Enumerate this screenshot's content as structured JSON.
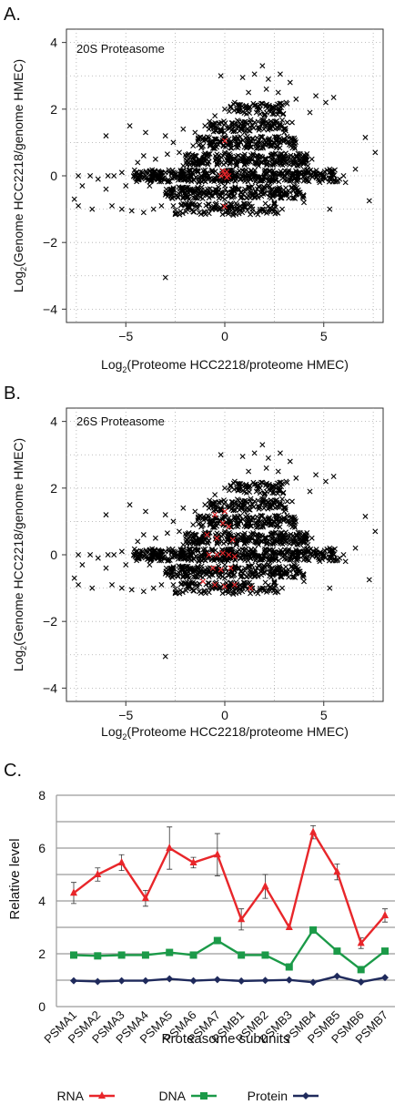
{
  "figure": {
    "panel_a_label": "A.",
    "panel_b_label": "B.",
    "panel_c_label": "C."
  },
  "chart_data": [
    {
      "type": "scatter",
      "panel": "A.",
      "title": "20S Proteasome",
      "xlabel_prefix": "Log",
      "xlabel_sub": "2",
      "xlabel_rest": "(Proteome HCC2218/proteome HMEC)",
      "ylabel_prefix": "Log",
      "ylabel_sub": "2",
      "ylabel_rest": "(Genome HCC2218/genome HMEC)",
      "xlim": [
        -8,
        8
      ],
      "ylim": [
        -4.4,
        4.4
      ],
      "xticks": [
        -5,
        0,
        5
      ],
      "yticks": [
        -4,
        -2,
        0,
        2,
        4
      ],
      "grid": true,
      "colors": {
        "background": "#000000",
        "highlight": "#e8262a"
      },
      "series": [
        {
          "role": "background",
          "marker": "x",
          "points": [
            [
              -0.2,
              3.0
            ],
            [
              0.9,
              2.95
            ],
            [
              1.5,
              3.05
            ],
            [
              1.9,
              3.3
            ],
            [
              2.2,
              2.9
            ],
            [
              2.8,
              3.05
            ],
            [
              3.3,
              2.8
            ],
            [
              3.6,
              2.3
            ],
            [
              4.6,
              2.4
            ],
            [
              5.1,
              2.2
            ],
            [
              5.5,
              2.35
            ],
            [
              4.3,
              1.9
            ],
            [
              1.2,
              2.5
            ],
            [
              0.5,
              2.2
            ],
            [
              0.0,
              2.0
            ],
            [
              -0.5,
              1.8
            ],
            [
              -1.0,
              1.5
            ],
            [
              -1.5,
              1.3
            ],
            [
              -2.1,
              1.4
            ],
            [
              -1.6,
              0.9
            ],
            [
              -1.1,
              1.1
            ],
            [
              -3.0,
              1.2
            ],
            [
              -4.0,
              1.3
            ],
            [
              -4.8,
              1.5
            ],
            [
              -6.0,
              1.2
            ],
            [
              -2.3,
              0.7
            ],
            [
              -2.9,
              0.65
            ],
            [
              -3.5,
              0.5
            ],
            [
              -4.1,
              0.6
            ],
            [
              -4.4,
              0.4
            ],
            [
              -5.2,
              0.1
            ],
            [
              -5.6,
              0.0
            ],
            [
              -5.9,
              0.0
            ],
            [
              -6.4,
              -0.1
            ],
            [
              -6.8,
              0.0
            ],
            [
              -7.4,
              0.0
            ],
            [
              -7.2,
              -0.3
            ],
            [
              -7.6,
              -0.7
            ],
            [
              -7.4,
              -0.9
            ],
            [
              -6.7,
              -1.0
            ],
            [
              -5.7,
              -0.9
            ],
            [
              -5.2,
              -1.0
            ],
            [
              -4.7,
              -1.05
            ],
            [
              -4.1,
              -1.1
            ],
            [
              -3.6,
              -1.0
            ],
            [
              -3.2,
              -0.9
            ],
            [
              -2.6,
              -0.9
            ],
            [
              -1.9,
              -0.95
            ],
            [
              -1.4,
              -0.9
            ],
            [
              -3.0,
              -3.05
            ],
            [
              -0.8,
              0.0
            ],
            [
              -1.2,
              0.0
            ],
            [
              -1.8,
              0.0
            ],
            [
              -2.4,
              0.0
            ],
            [
              -3.3,
              0.0
            ],
            [
              -4.0,
              0.0
            ],
            [
              -4.5,
              0.0
            ],
            [
              -2.7,
              -0.4
            ],
            [
              -2.0,
              -0.5
            ],
            [
              -1.5,
              -0.5
            ],
            [
              -1.0,
              -0.45
            ],
            [
              -0.5,
              -0.5
            ],
            [
              0.3,
              -0.5
            ],
            [
              0.8,
              -0.5
            ],
            [
              1.3,
              -0.5
            ],
            [
              1.8,
              -0.5
            ],
            [
              2.3,
              -0.5
            ],
            [
              2.8,
              -0.55
            ],
            [
              3.3,
              -0.5
            ],
            [
              3.8,
              -0.5
            ],
            [
              -0.9,
              0.5
            ],
            [
              -0.4,
              0.5
            ],
            [
              0.4,
              0.5
            ],
            [
              0.9,
              0.5
            ],
            [
              1.4,
              0.5
            ],
            [
              2.0,
              0.5
            ],
            [
              2.6,
              0.45
            ],
            [
              3.2,
              0.5
            ],
            [
              3.8,
              0.5
            ],
            [
              4.4,
              0.5
            ],
            [
              -0.7,
              1.0
            ],
            [
              -0.2,
              1.0
            ],
            [
              0.3,
              1.0
            ],
            [
              0.8,
              1.0
            ],
            [
              1.3,
              1.05
            ],
            [
              1.8,
              1.0
            ],
            [
              2.3,
              1.0
            ],
            [
              2.8,
              1.0
            ],
            [
              3.3,
              1.0
            ],
            [
              0.4,
              1.5
            ],
            [
              0.9,
              1.5
            ],
            [
              1.4,
              1.5
            ],
            [
              1.9,
              1.55
            ],
            [
              2.4,
              1.5
            ],
            [
              2.9,
              1.5
            ],
            [
              3.4,
              1.6
            ],
            [
              0.6,
              2.0
            ],
            [
              1.1,
              2.05
            ],
            [
              1.6,
              1.9
            ],
            [
              2.1,
              2.1
            ],
            [
              2.6,
              2.0
            ],
            [
              3.1,
              2.2
            ],
            [
              2.1,
              2.6
            ],
            [
              2.7,
              2.5
            ],
            [
              0.5,
              0.0
            ],
            [
              1.0,
              0.0
            ],
            [
              1.5,
              0.0
            ],
            [
              2.0,
              0.0
            ],
            [
              2.5,
              0.0
            ],
            [
              3.0,
              0.0
            ],
            [
              3.5,
              0.0
            ],
            [
              4.0,
              0.0
            ],
            [
              4.5,
              0.0
            ],
            [
              5.0,
              0.0
            ],
            [
              5.5,
              0.0
            ],
            [
              6.0,
              0.0
            ],
            [
              4.2,
              0.3
            ],
            [
              4.8,
              -0.2
            ],
            [
              5.3,
              0.2
            ],
            [
              5.8,
              -0.1
            ],
            [
              -0.8,
              -1.0
            ],
            [
              -0.3,
              -1.0
            ],
            [
              0.4,
              -1.0
            ],
            [
              0.9,
              -1.0
            ],
            [
              1.4,
              -1.0
            ],
            [
              1.9,
              -1.0
            ],
            [
              2.4,
              -1.0
            ],
            [
              2.9,
              -1.0
            ],
            [
              6.1,
              -0.2
            ],
            [
              6.6,
              0.2
            ],
            [
              5.3,
              -1.0
            ],
            [
              7.1,
              1.15
            ],
            [
              7.6,
              0.7
            ],
            [
              7.3,
              -0.75
            ],
            [
              -1.3,
              -0.2
            ],
            [
              -0.2,
              -0.2
            ],
            [
              0.6,
              0.3
            ],
            [
              1.7,
              0.3
            ],
            [
              2.2,
              -0.3
            ],
            [
              3.7,
              0.3
            ],
            [
              -2.1,
              0.3
            ],
            [
              -3.8,
              -0.3
            ],
            [
              -5.0,
              -0.3
            ],
            [
              -6.0,
              -0.4
            ],
            [
              4.0,
              -0.8
            ],
            [
              3.0,
              1.3
            ],
            [
              1.0,
              1.3
            ],
            [
              -0.8,
              1.4
            ],
            [
              2.0,
              1.8
            ],
            [
              -2.6,
              1.0
            ],
            [
              -1.8,
              -0.7
            ],
            [
              2.5,
              -0.8
            ],
            [
              3.5,
              -0.3
            ],
            [
              0.0,
              -0.7
            ],
            [
              0.0,
              0.7
            ],
            [
              0.0,
              1.3
            ],
            [
              0.0,
              -0.3
            ]
          ]
        },
        {
          "role": "highlight",
          "marker": "x",
          "points": [
            [
              0.0,
              1.05
            ],
            [
              -0.1,
              0.15
            ],
            [
              0.1,
              -0.05
            ],
            [
              0.0,
              0.05
            ],
            [
              -0.2,
              0.0
            ],
            [
              0.2,
              0.0
            ],
            [
              0.1,
              0.12
            ],
            [
              0.0,
              -0.92
            ]
          ]
        }
      ]
    },
    {
      "type": "scatter",
      "panel": "B.",
      "title": "26S Proteasome",
      "xlabel_prefix": "Log",
      "xlabel_sub": "2",
      "xlabel_rest": "(Proteome HCC2218/proteome HMEC)",
      "ylabel_prefix": "Log",
      "ylabel_sub": "2",
      "ylabel_rest": "(Genome HCC2218/genome HMEC)",
      "xlim": [
        -8,
        8
      ],
      "ylim": [
        -4.4,
        4.4
      ],
      "xticks": [
        -5,
        0,
        5
      ],
      "yticks": [
        -4,
        -2,
        0,
        2,
        4
      ],
      "grid": true,
      "colors": {
        "background": "#000000",
        "highlight": "#e8262a"
      },
      "series": [
        {
          "role": "background",
          "marker": "x",
          "same_as_panel": "A."
        },
        {
          "role": "highlight",
          "marker": "x",
          "points": [
            [
              -0.5,
              1.2
            ],
            [
              0.0,
              1.3
            ],
            [
              -0.1,
              0.95
            ],
            [
              0.2,
              0.85
            ],
            [
              -0.9,
              0.6
            ],
            [
              -0.4,
              0.5
            ],
            [
              0.4,
              0.45
            ],
            [
              -0.8,
              0.0
            ],
            [
              -0.4,
              0.0
            ],
            [
              -0.1,
              0.05
            ],
            [
              0.2,
              0.0
            ],
            [
              0.5,
              -0.05
            ],
            [
              -0.6,
              -0.4
            ],
            [
              -0.2,
              -0.45
            ],
            [
              0.3,
              -0.4
            ],
            [
              -1.1,
              -0.8
            ],
            [
              -0.5,
              -0.9
            ],
            [
              0.0,
              -0.95
            ],
            [
              0.5,
              -0.9
            ],
            [
              1.3,
              -1.0
            ]
          ]
        }
      ]
    },
    {
      "type": "line",
      "panel": "C.",
      "xlabel": "Proteasome subunits",
      "ylabel": "Relative level",
      "ylim": [
        0,
        8
      ],
      "yticks": [
        0,
        2,
        4,
        6,
        8
      ],
      "grid": true,
      "legend_position": "bottom",
      "categories": [
        "PSMA1",
        "PSMA2",
        "PSMA3",
        "PSMA4",
        "PSMA5",
        "PSMA6",
        "PSMA7",
        "PSMB1",
        "PSMB2",
        "PSMB3",
        "PSMB4",
        "PSMB5",
        "PSMB6",
        "PSMB7"
      ],
      "series": [
        {
          "name": "RNA",
          "color": "#e8262a",
          "marker": "triangle",
          "values": [
            4.3,
            5.0,
            5.45,
            4.1,
            6.0,
            5.45,
            5.75,
            3.3,
            4.55,
            3.0,
            6.6,
            5.1,
            2.4,
            3.45
          ],
          "errors": [
            0.4,
            0.25,
            0.3,
            0.3,
            0.8,
            0.2,
            0.8,
            0.4,
            0.45,
            0.0,
            0.25,
            0.3,
            0.2,
            0.25
          ]
        },
        {
          "name": "DNA",
          "color": "#1b9a48",
          "marker": "square",
          "values": [
            1.95,
            1.92,
            1.95,
            1.95,
            2.05,
            1.95,
            2.5,
            1.95,
            1.95,
            1.5,
            2.9,
            2.1,
            1.4,
            2.1
          ]
        },
        {
          "name": "Protein",
          "color": "#1f2a5c",
          "marker": "diamond",
          "values": [
            0.98,
            0.95,
            0.98,
            0.98,
            1.05,
            0.98,
            1.02,
            0.97,
            0.99,
            1.01,
            0.92,
            1.15,
            0.93,
            1.1
          ]
        }
      ]
    }
  ]
}
